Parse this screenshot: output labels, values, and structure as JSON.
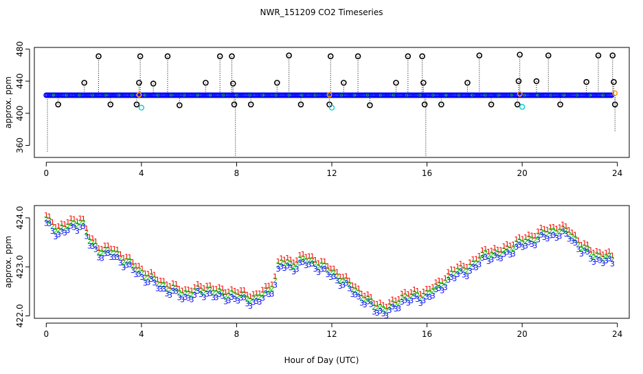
{
  "title": "NWR_151209  CO2 Timeseries",
  "xlabel": "Hour of Day (UTC)",
  "colors": {
    "black": "#000000",
    "blue": "#0000ff",
    "cyan": "#00cccc",
    "red": "#ff0000",
    "green": "#00cc00",
    "orange": "#ff9900"
  },
  "chart_data": [
    {
      "type": "scatter",
      "panel": "top",
      "ylabel": "approx. ppm",
      "xlim": [
        -0.5,
        24.5
      ],
      "ylim": [
        345,
        482
      ],
      "xticks": [
        0,
        4,
        8,
        12,
        16,
        20,
        24
      ],
      "yticks": [
        360,
        400,
        440,
        480
      ],
      "baseline": 422.5,
      "blue_band": {
        "x_start": 0.0,
        "x_end": 23.8,
        "value": 422.5
      },
      "spikes": [
        {
          "x": 0.05,
          "low": 352
        },
        {
          "x": 7.95,
          "low": 345
        },
        {
          "x": 15.95,
          "low": 346
        },
        {
          "x": 23.9,
          "low": 378
        }
      ],
      "black_circles": [
        [
          0.5,
          411
        ],
        [
          1.6,
          438
        ],
        [
          2.2,
          471
        ],
        [
          2.7,
          411
        ],
        [
          3.8,
          411
        ],
        [
          3.9,
          438
        ],
        [
          3.95,
          471
        ],
        [
          4.5,
          437
        ],
        [
          5.1,
          471
        ],
        [
          5.6,
          410
        ],
        [
          6.7,
          438
        ],
        [
          7.3,
          471
        ],
        [
          7.8,
          471
        ],
        [
          7.85,
          437
        ],
        [
          7.9,
          411
        ],
        [
          8.6,
          411
        ],
        [
          9.7,
          438
        ],
        [
          10.2,
          472
        ],
        [
          10.7,
          411
        ],
        [
          11.9,
          411
        ],
        [
          11.95,
          471
        ],
        [
          12.5,
          438
        ],
        [
          13.1,
          471
        ],
        [
          13.6,
          410
        ],
        [
          14.7,
          438
        ],
        [
          15.2,
          471
        ],
        [
          15.8,
          471
        ],
        [
          15.85,
          438
        ],
        [
          15.9,
          411
        ],
        [
          16.6,
          411
        ],
        [
          17.7,
          438
        ],
        [
          18.2,
          472
        ],
        [
          18.7,
          411
        ],
        [
          19.8,
          411
        ],
        [
          19.85,
          440
        ],
        [
          19.9,
          473
        ],
        [
          20.6,
          440
        ],
        [
          21.1,
          472
        ],
        [
          21.6,
          411
        ],
        [
          22.7,
          439
        ],
        [
          23.2,
          472
        ],
        [
          23.8,
          472
        ],
        [
          23.85,
          439
        ],
        [
          23.9,
          411
        ]
      ],
      "cyan_circles": [
        [
          4.0,
          407
        ],
        [
          12.0,
          407
        ],
        [
          20.0,
          408
        ]
      ],
      "orange_points": [
        [
          3.9,
          423
        ],
        [
          11.9,
          423
        ],
        [
          19.9,
          424
        ],
        [
          23.9,
          425
        ]
      ]
    },
    {
      "type": "scatter",
      "panel": "bottom",
      "ylabel": "approx. ppm",
      "xlim": [
        -0.5,
        24.5
      ],
      "ylim": [
        421.95,
        424.25
      ],
      "xticks": [
        0,
        4,
        8,
        12,
        16,
        20,
        24
      ],
      "yticks": [
        422.0,
        423.0,
        424.0
      ],
      "series": [
        {
          "name": "1",
          "color": "#ff0000",
          "offset": 0.08
        },
        {
          "name": "2",
          "color": "#00cc00",
          "offset": 0.0
        },
        {
          "name": "3",
          "color": "#0000ff",
          "offset": -0.09
        }
      ],
      "trend_x": [
        0,
        0.5,
        1.0,
        1.5,
        1.8,
        2.2,
        2.8,
        3.3,
        3.8,
        4.3,
        4.8,
        5.3,
        5.8,
        6.3,
        6.8,
        7.3,
        7.8,
        8.3,
        8.8,
        9.3,
        9.6,
        9.8,
        10.3,
        10.8,
        11.3,
        11.8,
        12.3,
        12.8,
        13.3,
        13.8,
        14.3,
        14.6,
        15.0,
        15.5,
        16.0,
        16.5,
        17.0,
        17.5,
        18.0,
        18.5,
        19.0,
        19.5,
        20.0,
        20.5,
        21.0,
        21.5,
        22.0,
        22.5,
        23.0,
        23.5,
        23.8
      ],
      "trend_y": [
        423.95,
        423.75,
        423.85,
        423.95,
        423.55,
        423.35,
        423.3,
        423.15,
        422.95,
        422.8,
        422.65,
        422.55,
        422.45,
        422.5,
        422.55,
        422.45,
        422.45,
        422.4,
        422.35,
        422.5,
        422.7,
        423.1,
        423.05,
        423.15,
        423.1,
        422.95,
        422.8,
        422.6,
        422.4,
        422.2,
        422.15,
        422.2,
        422.4,
        422.4,
        422.45,
        422.6,
        422.85,
        422.95,
        423.05,
        423.3,
        423.25,
        423.4,
        423.5,
        423.6,
        423.7,
        423.75,
        423.7,
        423.4,
        423.25,
        423.2,
        423.15
      ]
    }
  ]
}
